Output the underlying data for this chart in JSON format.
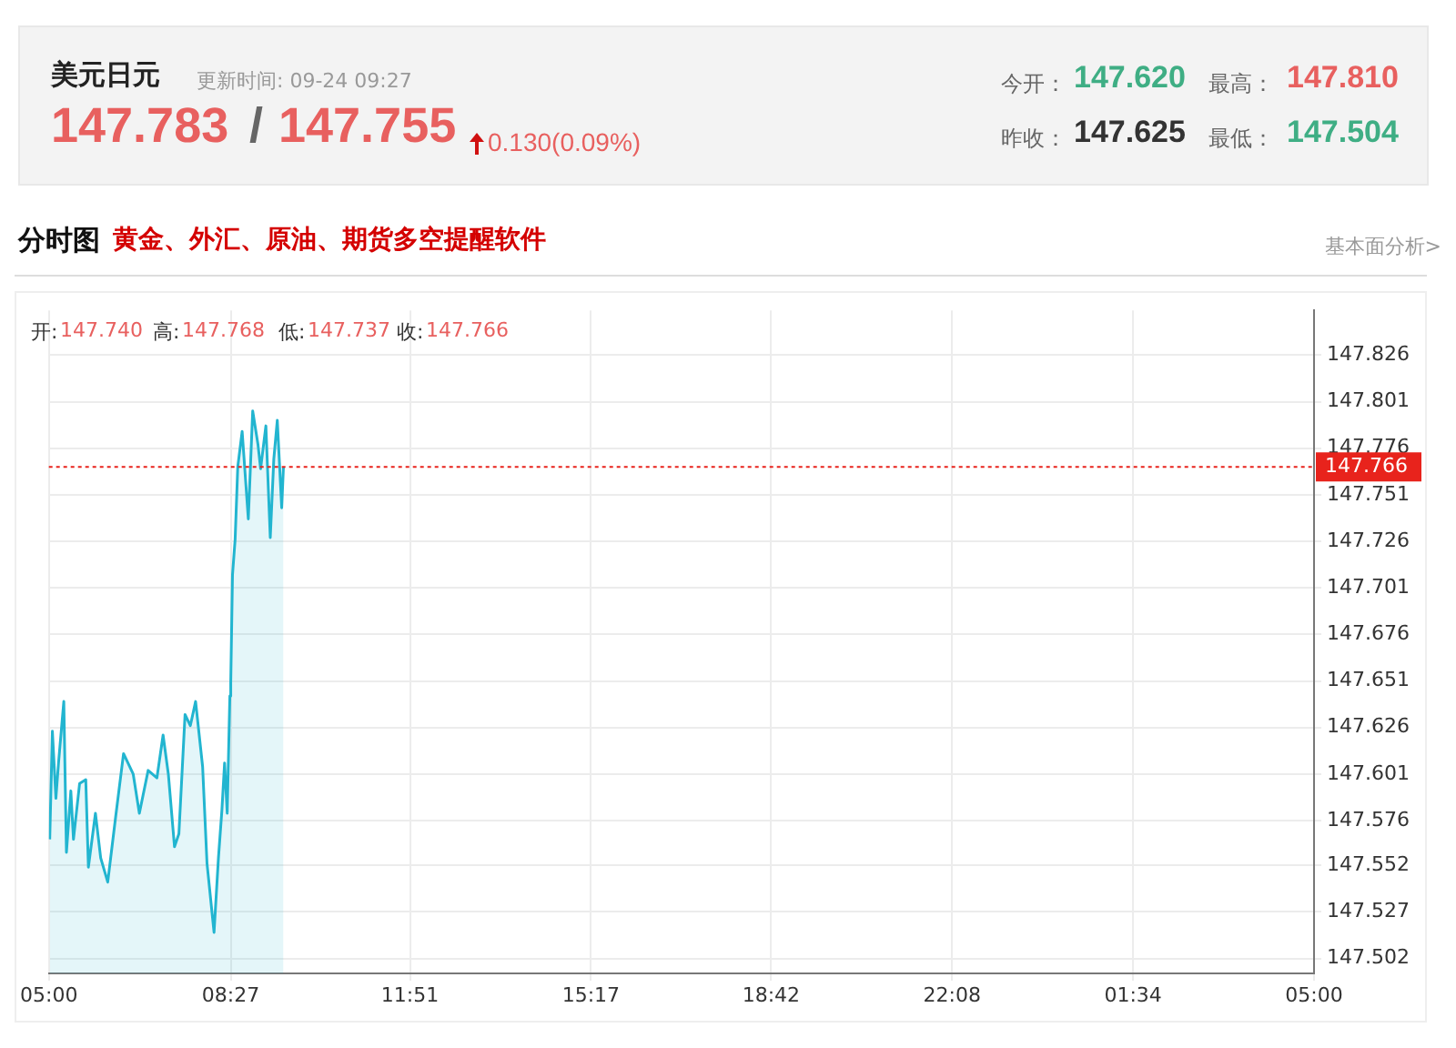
{
  "chart_data": {
    "type": "area",
    "title": "美元日元",
    "subtitle": "分时图",
    "annotations": [
      "更新时间: 09-24 09:27",
      "147.783",
      "/",
      "147.755",
      "0.130(0.09%)",
      "今开：",
      "147.620",
      "最高：",
      "147.810",
      "昨收：",
      "147.625",
      "最低：",
      "147.504",
      "黄金、外汇、原油、期货多空提醒软件",
      "基本面分析>",
      "开:",
      "147.740",
      "高:",
      "147.768",
      "低:",
      "147.737",
      "收:",
      "147.766"
    ],
    "xlim": [
      "--09-24T05:00",
      "--09-25T05:00"
    ],
    "xticks": [
      {
        "value": "--09-24T05:00",
        "label": "05:00"
      },
      {
        "value": "--09-24T08:27",
        "label": "08:27"
      },
      {
        "value": "--09-24T11:51",
        "label": "11:51"
      },
      {
        "value": "--09-24T15:17",
        "label": "15:17"
      },
      {
        "value": "--09-24T18:42",
        "label": "18:42"
      },
      {
        "value": "--09-24T22:08",
        "label": "22:08"
      },
      {
        "value": "--09-25T01:34",
        "label": "01:34"
      },
      {
        "value": "--09-25T05:00",
        "label": "05:00"
      }
    ],
    "ylim": [
      147.494,
      147.85
    ],
    "yticks": [
      147.502,
      147.527,
      147.552,
      147.576,
      147.601,
      147.626,
      147.651,
      147.676,
      147.701,
      147.726,
      147.751,
      147.776,
      147.801,
      147.826
    ],
    "grid": true,
    "ref_lines": [
      {
        "axis": "y",
        "value": 147.766,
        "label": "147.766",
        "color": "#e8231c",
        "line_style": "dotted"
      }
    ],
    "series": [
      {
        "color": "#22b5d0",
        "x": [
          "--09-24T05:01",
          "--09-24T05:04",
          "--09-24T05:08",
          "--09-24T05:11",
          "--09-24T05:17",
          "--09-24T05:20",
          "--09-24T05:25",
          "--09-24T05:28",
          "--09-24T05:35",
          "--09-24T05:42",
          "--09-24T05:45",
          "--09-24T05:53",
          "--09-24T05:59",
          "--09-24T06:07",
          "--09-24T06:16",
          "--09-24T06:25",
          "--09-24T06:36",
          "--09-24T06:43",
          "--09-24T06:53",
          "--09-24T07:03",
          "--09-24T07:10",
          "--09-24T07:16",
          "--09-24T07:23",
          "--09-24T07:28",
          "--09-24T07:35",
          "--09-24T07:41",
          "--09-24T07:47",
          "--09-24T07:55",
          "--09-24T08:00",
          "--09-24T08:08",
          "--09-24T08:13",
          "--09-24T08:17",
          "--09-24T08:20",
          "--09-24T08:23",
          "--09-24T08:26",
          "--09-24T08:27",
          "--09-24T08:29",
          "--09-24T08:32",
          "--09-24T08:35",
          "--09-24T08:40",
          "--09-24T08:47",
          "--09-24T08:52",
          "--09-24T08:58",
          "--09-24T09:01",
          "--09-24T09:07",
          "--09-24T09:12",
          "--09-24T09:16",
          "--09-24T09:20",
          "--09-24T09:25",
          "--09-24T09:27"
        ],
        "values": [
          147.566,
          147.624,
          147.588,
          147.607,
          147.64,
          147.559,
          147.592,
          147.566,
          147.596,
          147.598,
          147.551,
          147.58,
          147.556,
          147.543,
          147.578,
          147.612,
          147.601,
          147.58,
          147.603,
          147.599,
          147.622,
          147.601,
          147.562,
          147.569,
          147.633,
          147.627,
          147.64,
          147.605,
          147.553,
          147.516,
          147.556,
          147.582,
          147.607,
          147.58,
          147.643,
          147.65,
          147.708,
          147.727,
          147.766,
          147.785,
          147.738,
          147.796,
          147.778,
          147.765,
          147.788,
          147.728,
          147.77,
          147.791,
          147.744,
          147.766
        ]
      }
    ]
  }
}
